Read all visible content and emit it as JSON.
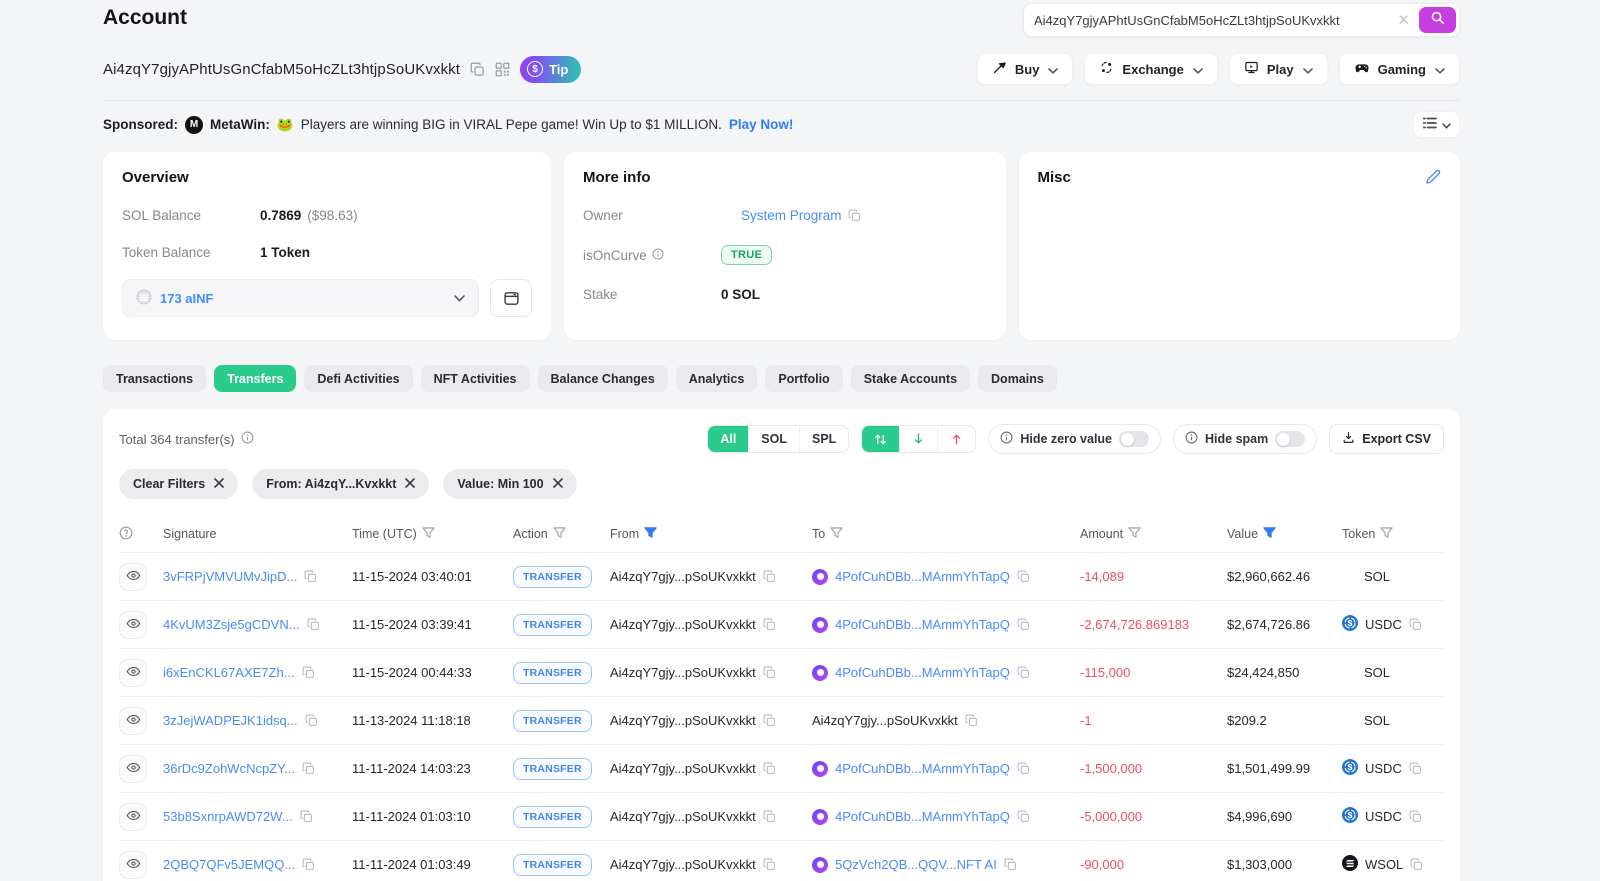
{
  "colors": {
    "accent_green": "#2bcb8c",
    "link_blue": "#478bf9",
    "negative_red": "#ee4d64",
    "search_purple": "#c43ee0"
  },
  "header": {
    "title": "Account",
    "search_value": "Ai4zqY7gjyAPhtUsGnCfabM5oHcZLt3htjpSoUKvxkkt",
    "address": "Ai4zqY7gjyAPhtUsGnCfabM5oHcZLt3htjpSoUKvxkkt",
    "tip_label": "Tip",
    "nav": [
      {
        "label": "Buy",
        "icon": "buy-icon"
      },
      {
        "label": "Exchange",
        "icon": "exchange-icon"
      },
      {
        "label": "Play",
        "icon": "play-icon"
      },
      {
        "label": "Gaming",
        "icon": "gaming-icon"
      }
    ]
  },
  "sponsored": {
    "label": "Sponsored:",
    "brand": "MetaWin:",
    "emoji": "🐸",
    "text": "Players are winning BIG in VIRAL Pepe game! Win Up to $1 MILLION.",
    "link": "Play Now!"
  },
  "overview": {
    "title": "Overview",
    "sol_label": "SOL Balance",
    "sol_value": "0.7869",
    "sol_usd": "($98.63)",
    "token_label": "Token Balance",
    "token_value": "1 Token",
    "selector_label": "173 aINF"
  },
  "more_info": {
    "title": "More info",
    "owner_label": "Owner",
    "owner_value": "System Program",
    "curve_label": "isOnCurve",
    "curve_value": "TRUE",
    "stake_label": "Stake",
    "stake_value": "0 SOL"
  },
  "misc": {
    "title": "Misc"
  },
  "tabs": [
    {
      "label": "Transactions",
      "active": false
    },
    {
      "label": "Transfers",
      "active": true
    },
    {
      "label": "Defi Activities",
      "active": false
    },
    {
      "label": "NFT Activities",
      "active": false
    },
    {
      "label": "Balance Changes",
      "active": false
    },
    {
      "label": "Analytics",
      "active": false
    },
    {
      "label": "Portfolio",
      "active": false
    },
    {
      "label": "Stake Accounts",
      "active": false
    },
    {
      "label": "Domains",
      "active": false
    }
  ],
  "table": {
    "total": "Total 364 transfer(s)",
    "segments": [
      {
        "label": "All",
        "active": true
      },
      {
        "label": "SOL",
        "active": false
      },
      {
        "label": "SPL",
        "active": false
      }
    ],
    "hide_zero": "Hide zero value",
    "hide_spam": "Hide spam",
    "export_label": "Export CSV",
    "chips": [
      {
        "label": "Clear Filters"
      },
      {
        "label": "From: Ai4zqY...Kvxkkt"
      },
      {
        "label": "Value: Min 100"
      }
    ],
    "columns": [
      {
        "label": "Signature",
        "filter": "none"
      },
      {
        "label": "Time (UTC)",
        "filter": "gray"
      },
      {
        "label": "Action",
        "filter": "gray"
      },
      {
        "label": "From",
        "filter": "blue"
      },
      {
        "label": "To",
        "filter": "gray"
      },
      {
        "label": "Amount",
        "filter": "gray"
      },
      {
        "label": "Value",
        "filter": "blue"
      },
      {
        "label": "Token",
        "filter": "gray"
      }
    ],
    "rows": [
      {
        "signature": "3vFRPjVMVUMvJipD...",
        "time": "11-15-2024 03:40:01",
        "action": "TRANSFER",
        "from": "Ai4zqY7gjy...pSoUKvxkkt",
        "to": "4PofCuhDBb...MAmmYhTapQ",
        "to_is_link": true,
        "amount": "-14,089",
        "value": "$2,960,662.46",
        "token": "SOL",
        "token_type": "sol",
        "token_copy": false
      },
      {
        "signature": "4KvUM3Zsje5gCDVN...",
        "time": "11-15-2024 03:39:41",
        "action": "TRANSFER",
        "from": "Ai4zqY7gjy...pSoUKvxkkt",
        "to": "4PofCuhDBb...MAmmYhTapQ",
        "to_is_link": true,
        "amount": "-2,674,726.869183",
        "value": "$2,674,726.86",
        "token": "USDC",
        "token_type": "usdc",
        "token_copy": true
      },
      {
        "signature": "i6xEnCKL67AXE7Zh...",
        "time": "11-15-2024 00:44:33",
        "action": "TRANSFER",
        "from": "Ai4zqY7gjy...pSoUKvxkkt",
        "to": "4PofCuhDBb...MAmmYhTapQ",
        "to_is_link": true,
        "amount": "-115,000",
        "value": "$24,424,850",
        "token": "SOL",
        "token_type": "sol",
        "token_copy": false
      },
      {
        "signature": "3zJejWADPEJK1idsq...",
        "time": "11-13-2024 11:18:18",
        "action": "TRANSFER",
        "from": "Ai4zqY7gjy...pSoUKvxkkt",
        "to": "Ai4zqY7gjy...pSoUKvxkkt",
        "to_is_link": false,
        "amount": "-1",
        "value": "$209.2",
        "token": "SOL",
        "token_type": "sol",
        "token_copy": false
      },
      {
        "signature": "36rDc9ZohWcNcpZY...",
        "time": "11-11-2024 14:03:23",
        "action": "TRANSFER",
        "from": "Ai4zqY7gjy...pSoUKvxkkt",
        "to": "4PofCuhDBb...MAmmYhTapQ",
        "to_is_link": true,
        "amount": "-1,500,000",
        "value": "$1,501,499.99",
        "token": "USDC",
        "token_type": "usdc",
        "token_copy": true
      },
      {
        "signature": "53b8SxnrpAWD72W...",
        "time": "11-11-2024 01:03:10",
        "action": "TRANSFER",
        "from": "Ai4zqY7gjy...pSoUKvxkkt",
        "to": "4PofCuhDBb...MAmmYhTapQ",
        "to_is_link": true,
        "amount": "-5,000,000",
        "value": "$4,996,690",
        "token": "USDC",
        "token_type": "usdc",
        "token_copy": true
      },
      {
        "signature": "2QBQ7QFv5JEMQQ...",
        "time": "11-11-2024 01:03:49",
        "action": "TRANSFER",
        "from": "Ai4zqY7gjy...pSoUKvxkkt",
        "to": "5QzVch2QB...QQV...NFT AI",
        "to_is_link": true,
        "amount": "-90,000",
        "value": "$1,303,000",
        "token": "WSOL",
        "token_type": "wsol",
        "token_copy": true
      }
    ]
  }
}
